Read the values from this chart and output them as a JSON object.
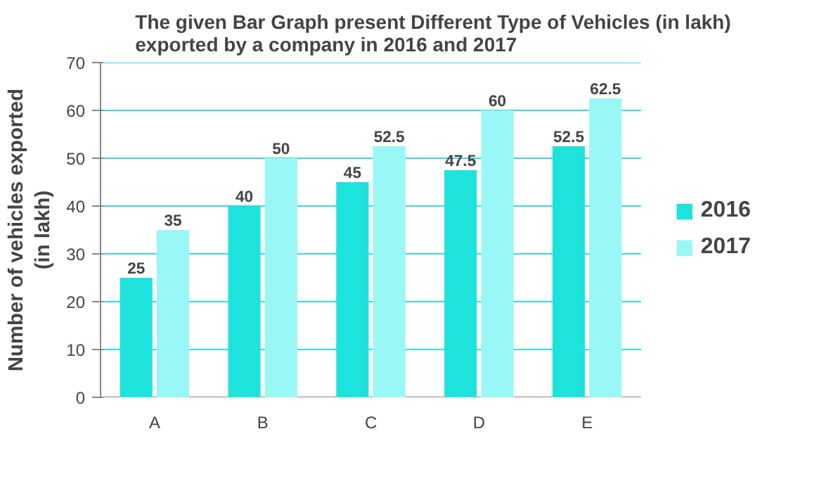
{
  "chart_data": {
    "type": "bar",
    "title": "The given Bar Graph present Different Type of Vehicles (in lakh) exported by a company in 2016 and 2017",
    "ylabel": "Number of vehicles exported (in lakh)",
    "categories": [
      "A",
      "B",
      "C",
      "D",
      "E"
    ],
    "series": [
      {
        "name": "2016",
        "color": "#1de3dc",
        "values": [
          25,
          40,
          45,
          47.5,
          52.5
        ]
      },
      {
        "name": "2017",
        "color": "#99f7f5",
        "values": [
          35,
          50,
          52.5,
          60,
          62.5
        ]
      }
    ],
    "ylim": [
      0,
      70
    ],
    "yticks": [
      0,
      10,
      20,
      30,
      40,
      50,
      60,
      70
    ],
    "grid": "y",
    "legend": "right",
    "data_labels": true
  }
}
